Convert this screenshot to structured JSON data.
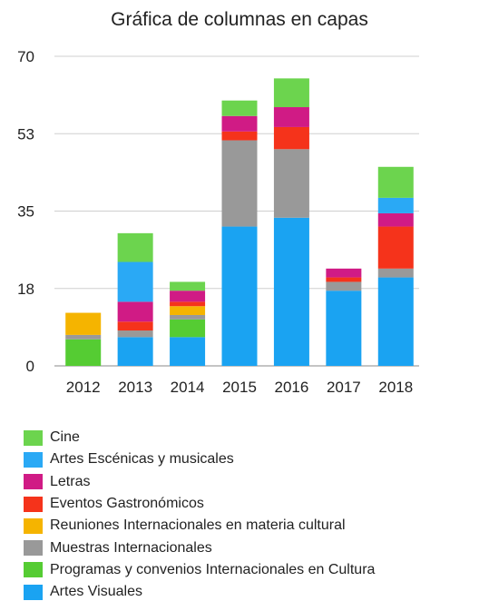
{
  "chart_data": {
    "type": "bar",
    "stacked": true,
    "title": "Gráfica de columnas en capas",
    "xlabel": "",
    "ylabel": "",
    "ylim": [
      0,
      70
    ],
    "yticks": [
      "0",
      "18",
      "35",
      "53",
      "70"
    ],
    "ytick_values": [
      0,
      17.5,
      35,
      52.5,
      70
    ],
    "grid": true,
    "legend_position": "bottom",
    "categories": [
      "2012",
      "2013",
      "2014",
      "2015",
      "2016",
      "2017",
      "2018"
    ],
    "series": [
      {
        "name": "Artes Visuales",
        "color": "#1aa3f2",
        "values": [
          0,
          6.5,
          6.5,
          31.5,
          33.5,
          17,
          20
        ]
      },
      {
        "name": "Programas y convenios  Internacionales en Cultura",
        "color": "#55cc33",
        "values": [
          6,
          0,
          4,
          0,
          0,
          0,
          0
        ]
      },
      {
        "name": "Muestras Internacionales",
        "color": "#999999",
        "values": [
          1,
          1.5,
          1,
          19.5,
          15.5,
          2,
          2
        ]
      },
      {
        "name": "Reuniones Internacionales en materia cultural",
        "color": "#f5b400",
        "values": [
          5,
          0,
          2,
          0,
          0,
          0,
          0
        ]
      },
      {
        "name": "Eventos Gastronómicos",
        "color": "#f5331b",
        "values": [
          0,
          2,
          1,
          2,
          5,
          1,
          9.5
        ]
      },
      {
        "name": "Letras",
        "color": "#d01b85",
        "values": [
          0,
          4.5,
          2.5,
          3.5,
          4.5,
          2,
          3
        ]
      },
      {
        "name": "Artes Escénicas y musicales",
        "color": "#2aa9f5",
        "values": [
          0,
          9,
          0,
          0,
          0,
          0,
          3.5
        ]
      },
      {
        "name": "Cine",
        "color": "#6cd44e",
        "values": [
          0,
          6.5,
          2,
          3.5,
          6.5,
          0,
          7
        ]
      }
    ]
  },
  "legend_order": [
    "Cine",
    "Artes Escénicas y musicales",
    "Letras",
    "Eventos Gastronómicos",
    "Reuniones Internacionales en materia cultural",
    "Muestras Internacionales",
    "Programas y convenios  Internacionales en Cultura",
    "Artes Visuales"
  ]
}
